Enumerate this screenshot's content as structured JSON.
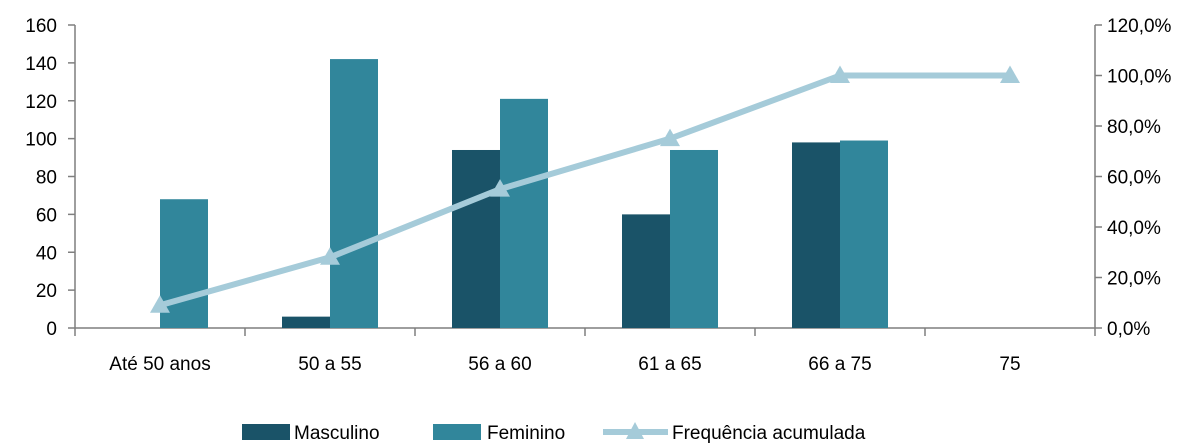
{
  "chart_data": {
    "type": "bar",
    "categories": [
      "Até 50 anos",
      "50 a 55",
      "56 a 60",
      "61 a 65",
      "66 a 75",
      "75"
    ],
    "series": [
      {
        "name": "Masculino",
        "kind": "bar",
        "axis": "left",
        "color": "#1a5368",
        "values": [
          0,
          6,
          94,
          60,
          98,
          0
        ]
      },
      {
        "name": "Feminino",
        "kind": "bar",
        "axis": "left",
        "color": "#31869b",
        "values": [
          68,
          142,
          121,
          94,
          99,
          0
        ]
      },
      {
        "name": "Frequência acumulada",
        "kind": "line",
        "axis": "right",
        "marker": "triangle",
        "color": "#a5cbd9",
        "values": [
          9.0,
          28.0,
          55.0,
          75.0,
          100.0,
          100.0
        ]
      }
    ],
    "y_left": {
      "ylim": [
        0,
        160
      ],
      "ticks": [
        0,
        20,
        40,
        60,
        80,
        100,
        120,
        140,
        160
      ],
      "tick_labels": [
        "0",
        "20",
        "40",
        "60",
        "80",
        "100",
        "120",
        "140",
        "160"
      ]
    },
    "y_right": {
      "ylim": [
        0,
        120
      ],
      "ticks": [
        0,
        20,
        40,
        60,
        80,
        100,
        120
      ],
      "tick_labels": [
        "0,0%",
        "20,0%",
        "40,0%",
        "60,0%",
        "80,0%",
        "100,0%",
        "120,0%"
      ]
    },
    "grid": false,
    "legend_position": "bottom",
    "title": "",
    "xlabel": "",
    "ylabel": ""
  }
}
